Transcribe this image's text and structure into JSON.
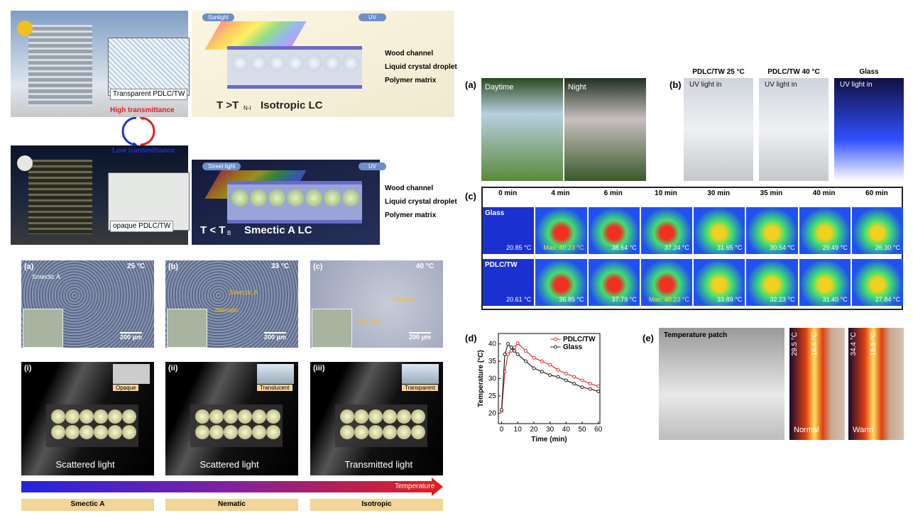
{
  "schematic": {
    "top": {
      "building_label": "Transparent PDLC/TW",
      "light": "Sunlight",
      "uv": "UV",
      "layers": [
        "Wood channel",
        "Liquid crystal droplet",
        "Polymer matrix"
      ],
      "condition": "T >T",
      "condition_sub": "N-I",
      "phase": "Isotropic LC"
    },
    "high": "High transmittance",
    "low": "Low transmittance",
    "bottom": {
      "building_label": "opaque PDLC/TW",
      "light": "Street light",
      "uv": "UV",
      "layers": [
        "Wood channel",
        "Liquid crystal droplet",
        "Polymer matrix"
      ],
      "condition": "T < T",
      "condition_sub": "B",
      "phase": "Smectic A LC"
    }
  },
  "micrographs": [
    {
      "label": "(a)",
      "temp": "25 °C",
      "phases": [
        "Smectic A"
      ],
      "scale": "200 μm"
    },
    {
      "label": "(b)",
      "temp": "33 °C",
      "phases": [
        "Smectic A",
        "Nematic"
      ],
      "scale": "200 μm"
    },
    {
      "label": "(c)",
      "temp": "40 °C",
      "phases": [
        "Nematic",
        "Isotropic"
      ],
      "scale": "200 μm"
    }
  ],
  "models": [
    {
      "label": "(i)",
      "state": "Opaque",
      "light": "Scattered light"
    },
    {
      "label": "(ii)",
      "state": "Translucent",
      "light": "Scattered light"
    },
    {
      "label": "(iii)",
      "state": "Transparent",
      "light": "Transmitted light"
    }
  ],
  "temperature_bar": {
    "label": "Temperature",
    "phases": [
      "Smectic A",
      "Nematic",
      "Isotropic"
    ]
  },
  "panel_a": {
    "label": "(a)",
    "photos": [
      "Daytime",
      "Night"
    ]
  },
  "panel_b": {
    "label": "(b)",
    "photos": [
      {
        "title": "PDLC/TW 25 °C",
        "note": "UV light in"
      },
      {
        "title": "PDLC/TW 40 °C",
        "note": "UV light in"
      },
      {
        "title": "Glass",
        "note": "UV light in"
      }
    ]
  },
  "panel_c": {
    "label": "(c)",
    "times": [
      "0 min",
      "4 min",
      "6 min",
      "10 min",
      "30 min",
      "35 min",
      "40 min",
      "60 min"
    ],
    "rows": [
      {
        "name": "Glass",
        "temps": [
          "20.85 °C",
          "Max: 40.23 °C",
          "38.64 °C",
          "37.24 °C",
          "31.65 °C",
          "30.54 °C",
          "29.49 °C",
          "26.30 °C"
        ]
      },
      {
        "name": "PDLC/TW",
        "temps": [
          "20.61 °C",
          "36.85 °C",
          "37.79 °C",
          "Max: 40.23 °C",
          "33.89 °C",
          "32.23 °C",
          "31.40 °C",
          "27.84 °C"
        ]
      }
    ]
  },
  "panel_d": {
    "label": "(d)",
    "chart": {
      "type": "line",
      "x_label": "Time (min)",
      "y_label": "Temperature (°C)",
      "x": [
        0,
        2,
        4,
        6,
        8,
        10,
        15,
        20,
        25,
        30,
        35,
        40,
        45,
        50,
        55,
        60
      ],
      "series": [
        {
          "name": "PDLC/TW",
          "color": "#e03030",
          "values": [
            20.6,
            32,
            37,
            38,
            39,
            40.2,
            38,
            36,
            35,
            34,
            32.5,
            31.4,
            30.5,
            29.5,
            28.5,
            27.8
          ]
        },
        {
          "name": "Glass",
          "color": "#222222",
          "values": [
            21,
            37,
            40,
            39,
            38,
            37,
            35,
            33,
            32,
            31,
            30.5,
            29.5,
            28.5,
            27.5,
            27,
            26.3
          ]
        }
      ],
      "xlim": [
        -2,
        61
      ],
      "ylim": [
        17,
        43
      ],
      "xticks": [
        0,
        10,
        20,
        30,
        40,
        50,
        60
      ],
      "yticks": [
        20,
        25,
        30,
        35,
        40
      ],
      "legend": "upper right"
    }
  },
  "panel_e": {
    "label": "(e)",
    "photo": "Temperature patch",
    "thermal": [
      {
        "top": "29.5 °C",
        "right": "16.5 °C",
        "name": "Normal"
      },
      {
        "top": "34.4 °C",
        "right": "15.5 °C",
        "name": "Warm"
      }
    ]
  }
}
